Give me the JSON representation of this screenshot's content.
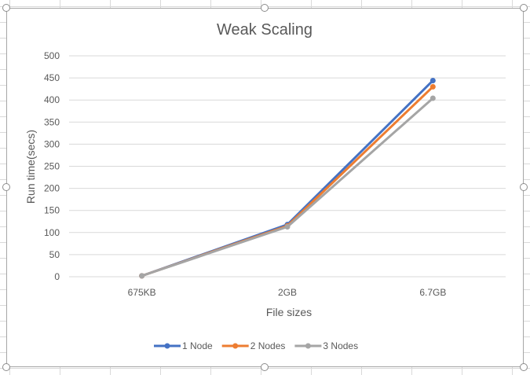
{
  "chart_data": {
    "type": "line",
    "title": "Weak Scaling",
    "xlabel": "File sizes",
    "ylabel": "Run time(secs)",
    "categories": [
      "675KB",
      "2GB",
      "6.7GB"
    ],
    "ylim": [
      0,
      500
    ],
    "yticks": [
      0,
      50,
      100,
      150,
      200,
      250,
      300,
      350,
      400,
      450,
      500
    ],
    "grid": true,
    "legend_position": "bottom",
    "series": [
      {
        "name": "1 Node",
        "color": "#4472c4",
        "values": [
          2,
          118,
          444
        ]
      },
      {
        "name": "2 Nodes",
        "color": "#ed7d31",
        "values": [
          2,
          115,
          430
        ]
      },
      {
        "name": "3 Nodes",
        "color": "#a5a5a5",
        "values": [
          2,
          113,
          404
        ]
      }
    ]
  }
}
